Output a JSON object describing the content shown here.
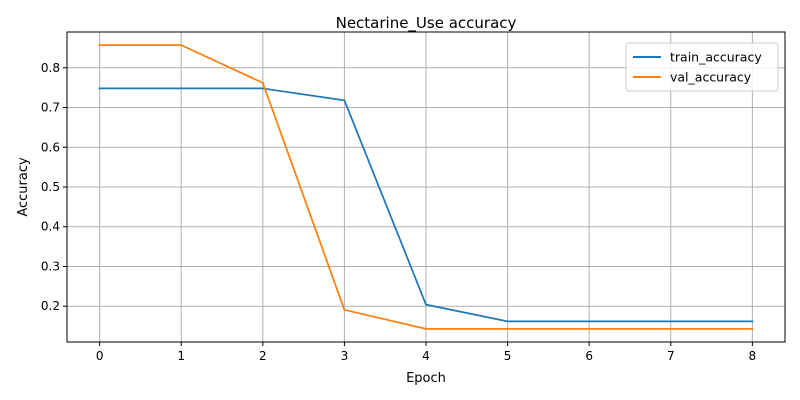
{
  "chart_data": {
    "type": "line",
    "title": "Nectarine_Use accuracy",
    "xlabel": "Epoch",
    "ylabel": "Accuracy",
    "x": [
      0,
      1,
      2,
      3,
      4,
      5,
      6,
      7,
      8
    ],
    "xlim": [
      -0.4,
      8.4
    ],
    "ylim": [
      0.11,
      0.89
    ],
    "xticks": [
      "0",
      "1",
      "2",
      "3",
      "4",
      "5",
      "6",
      "7",
      "8"
    ],
    "yticks": [
      "0.2",
      "0.3",
      "0.4",
      "0.5",
      "0.6",
      "0.7",
      "0.8"
    ],
    "grid": true,
    "legend_position": "top-right",
    "series": [
      {
        "name": "train_accuracy",
        "color": "#1f77b4",
        "values": [
          0.748,
          0.748,
          0.748,
          0.718,
          0.204,
          0.162,
          0.162,
          0.162,
          0.162
        ]
      },
      {
        "name": "val_accuracy",
        "color": "#ff7f0e",
        "values": [
          0.857,
          0.857,
          0.762,
          0.191,
          0.143,
          0.143,
          0.143,
          0.143,
          0.143
        ]
      }
    ]
  }
}
